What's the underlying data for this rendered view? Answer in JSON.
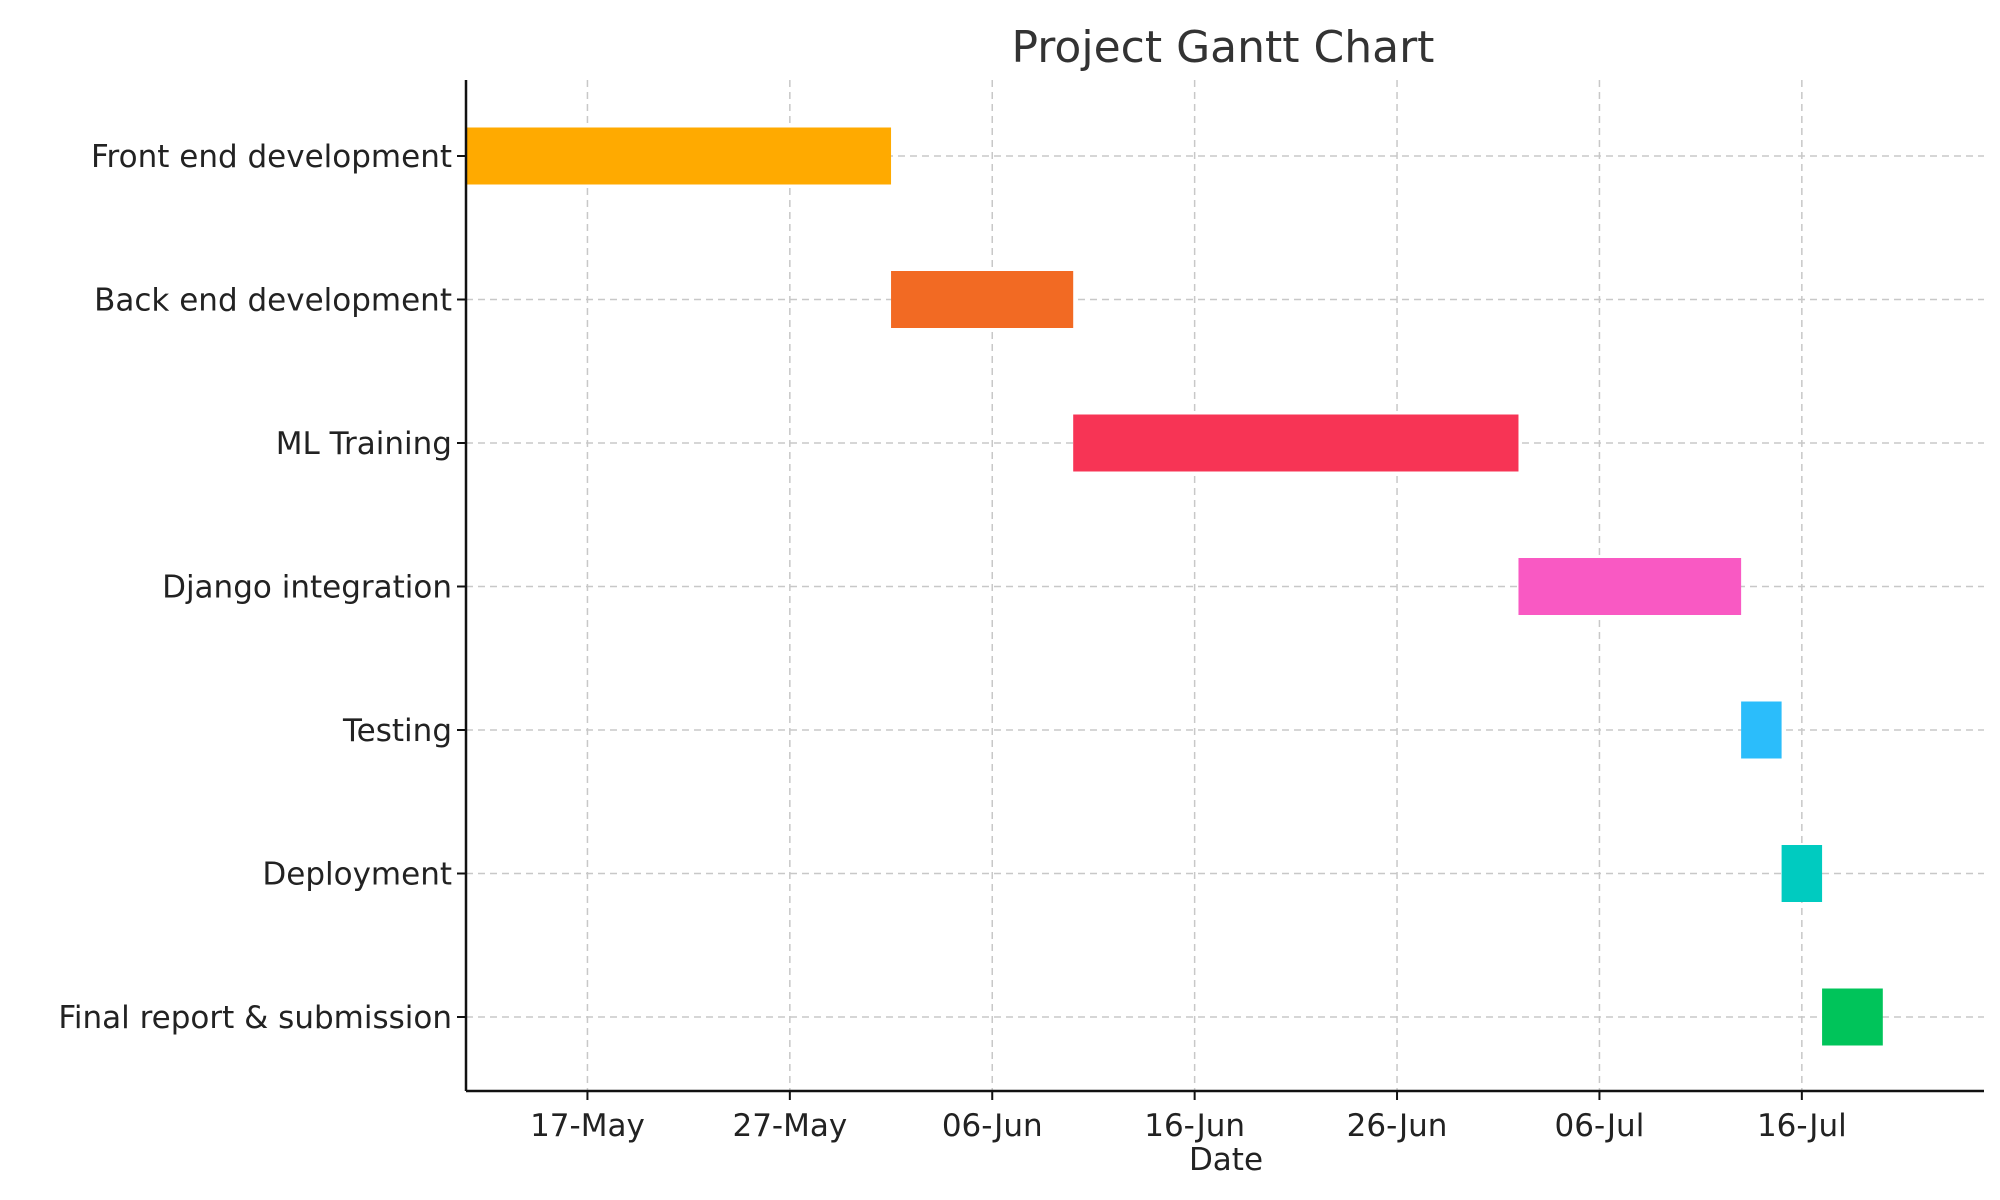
{
  "chart_data": {
    "type": "bar",
    "orientation": "horizontal",
    "chart_kind": "gantt",
    "title": "Project Gantt Chart",
    "xlabel": "Date",
    "ylabel": "",
    "grid": true,
    "x_axis": {
      "type": "date",
      "range": [
        "2024-05-11",
        "2024-07-25"
      ],
      "ticks": [
        {
          "date": "2024-05-17",
          "label": "17-May"
        },
        {
          "date": "2024-05-27",
          "label": "27-May"
        },
        {
          "date": "2024-06-06",
          "label": "06-Jun"
        },
        {
          "date": "2024-06-16",
          "label": "16-Jun"
        },
        {
          "date": "2024-06-26",
          "label": "26-Jun"
        },
        {
          "date": "2024-07-06",
          "label": "06-Jul"
        },
        {
          "date": "2024-07-16",
          "label": "16-Jul"
        }
      ]
    },
    "tasks": [
      {
        "name": "Front end development",
        "start": "2024-05-11",
        "end": "2024-06-01",
        "color": "#FFAA00"
      },
      {
        "name": "Back end development",
        "start": "2024-06-01",
        "end": "2024-06-10",
        "color": "#F26A23"
      },
      {
        "name": "ML Training",
        "start": "2024-06-10",
        "end": "2024-07-02",
        "color": "#F73455"
      },
      {
        "name": "Django integration",
        "start": "2024-07-02",
        "end": "2024-07-13",
        "color": "#F959C3"
      },
      {
        "name": "Testing",
        "start": "2024-07-13",
        "end": "2024-07-15",
        "color": "#2BBDFB"
      },
      {
        "name": "Deployment",
        "start": "2024-07-15",
        "end": "2024-07-17",
        "color": "#00CBC0"
      },
      {
        "name": "Final report & submission",
        "start": "2024-07-17",
        "end": "2024-07-20",
        "color": "#00C45A"
      }
    ]
  }
}
